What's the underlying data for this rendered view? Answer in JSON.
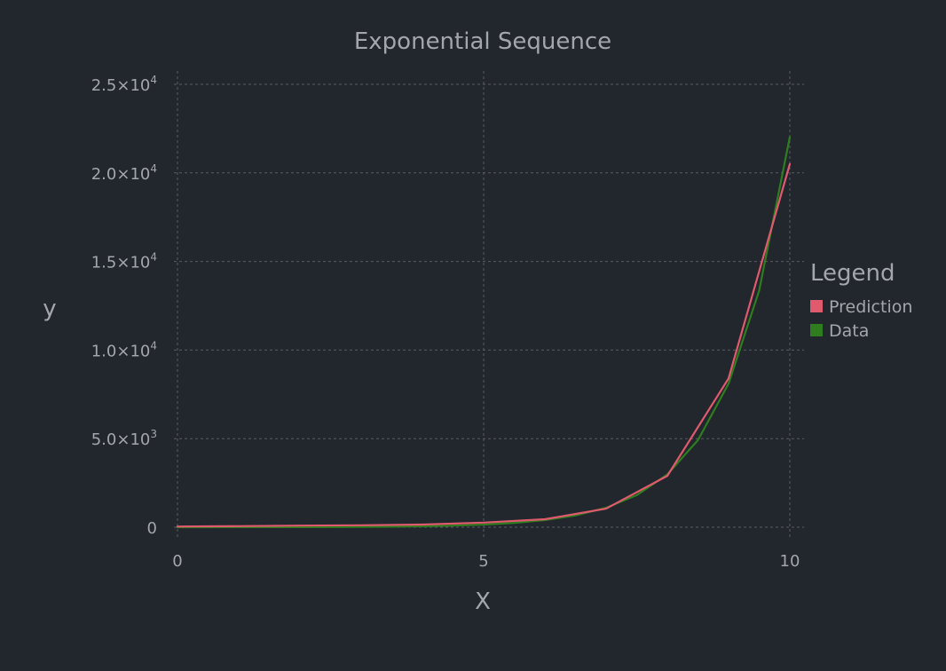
{
  "chart_data": {
    "type": "line",
    "title": "Exponential Sequence",
    "xlabel": "X",
    "ylabel": "y",
    "xlim": [
      0,
      10
    ],
    "ylim": [
      0,
      25000
    ],
    "grid": true,
    "legend_position": "right",
    "legend_title": "Legend",
    "x_ticks": [
      {
        "value": 0,
        "label": "0"
      },
      {
        "value": 5,
        "label": "5"
      },
      {
        "value": 10,
        "label": "10"
      }
    ],
    "y_ticks": [
      {
        "value": 0,
        "mantissa": "0",
        "exp": ""
      },
      {
        "value": 5000,
        "mantissa": "5.0×10",
        "exp": "3"
      },
      {
        "value": 10000,
        "mantissa": "1.0×10",
        "exp": "4"
      },
      {
        "value": 15000,
        "mantissa": "1.5×10",
        "exp": "4"
      },
      {
        "value": 20000,
        "mantissa": "2.0×10",
        "exp": "4"
      },
      {
        "value": 25000,
        "mantissa": "2.5×10",
        "exp": "4"
      }
    ],
    "series": [
      {
        "name": "Prediction",
        "color": "#e05a6e",
        "x": [
          0,
          1,
          2,
          3,
          4,
          5,
          6,
          7,
          8,
          9,
          10
        ],
        "y": [
          40,
          60,
          90,
          110,
          150,
          260,
          450,
          1050,
          2900,
          8400,
          20500
        ]
      },
      {
        "name": "Data",
        "color": "#2e7d1f",
        "x": [
          0,
          0.5,
          1,
          1.5,
          2,
          2.5,
          3,
          3.5,
          4,
          4.5,
          5,
          5.5,
          6,
          6.5,
          7,
          7.5,
          8,
          8.5,
          9,
          9.5,
          10
        ],
        "y": [
          1,
          1.4,
          2.7,
          4.5,
          7.4,
          12.2,
          20.1,
          33.1,
          54.6,
          90,
          148,
          245,
          403,
          665,
          1097,
          1808,
          2981,
          4915,
          8103,
          13360,
          22026
        ]
      }
    ]
  }
}
